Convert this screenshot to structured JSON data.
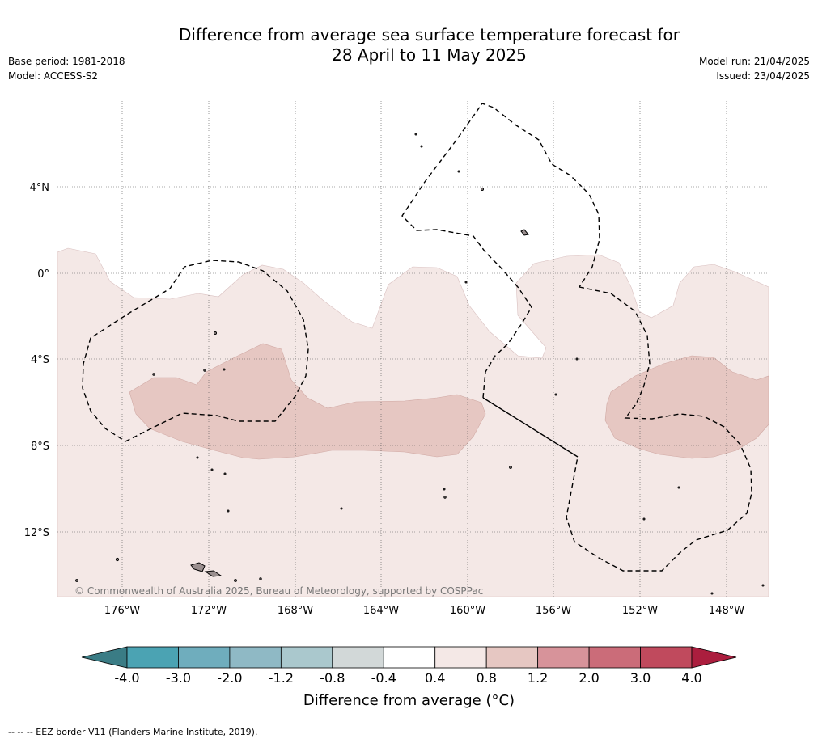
{
  "title_line1": "Difference from average sea surface temperature forecast for",
  "title_line2": "28 April to 11 May 2025",
  "base_period": "Base period: 1981-2018",
  "model": "Model: ACCESS-S2",
  "model_run": "Model run: 21/04/2025",
  "issued": "Issued: 23/04/2025",
  "copyright": "© Commonwealth of Australia 2025, Bureau of Meteorology, supported by COSPPac",
  "footnote": "--  --  -- EEZ border V11 (Flanders Marine Institute, 2019).",
  "axes": {
    "lat_ticks": [
      "4°N",
      "0°",
      "4°S",
      "8°S",
      "12°S"
    ],
    "lon_ticks": [
      "176°W",
      "172°W",
      "168°W",
      "164°W",
      "160°W",
      "156°W",
      "152°W",
      "148°W"
    ]
  },
  "colorbar": {
    "title": "Difference from average (°C)",
    "ticks": [
      "-4.0",
      "-3.0",
      "-2.0",
      "-1.2",
      "-0.8",
      "-0.4",
      "0.4",
      "0.8",
      "1.2",
      "2.0",
      "3.0",
      "4.0"
    ],
    "colors": [
      "#3a7c85",
      "#4ba3b3",
      "#6fadbd",
      "#8fb9c5",
      "#aac8cd",
      "#d2d8d8",
      "#ffffff",
      "#f4e8e6",
      "#e6c7c2",
      "#d7939a",
      "#cb6c79",
      "#c04a5d",
      "#ab1e3e"
    ]
  },
  "colors": {
    "anomaly_04_08": "#f4e8e6",
    "anomaly_08_12": "#e6c7c2",
    "land": "#9a8f8f"
  }
}
